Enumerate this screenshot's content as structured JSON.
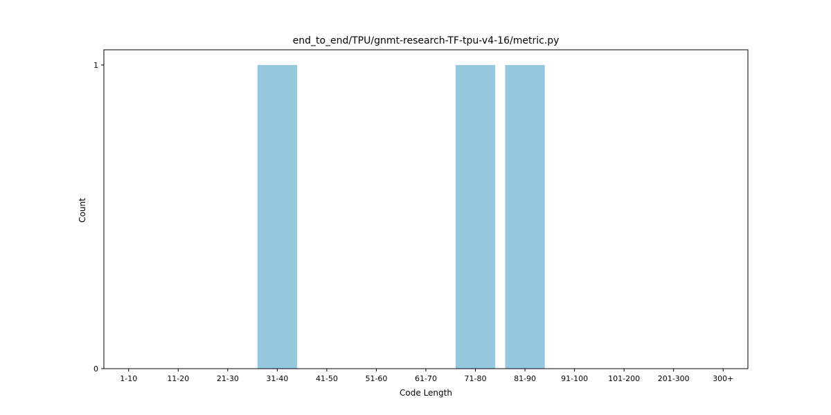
{
  "chart_data": {
    "type": "bar",
    "title": "end_to_end/TPU/gnmt-research-TF-tpu-v4-16/metric.py",
    "xlabel": "Code Length",
    "ylabel": "Count",
    "categories": [
      "1-10",
      "11-20",
      "21-30",
      "31-40",
      "41-50",
      "51-60",
      "61-70",
      "71-80",
      "81-90",
      "91-100",
      "101-200",
      "201-300",
      "300+"
    ],
    "values": [
      0,
      0,
      0,
      1,
      0,
      0,
      0,
      1,
      1,
      0,
      0,
      0,
      0
    ],
    "ylim": [
      0,
      1.05
    ],
    "yticks": [
      0,
      1
    ],
    "bar_color": "#96c8dd",
    "grid": false,
    "legend": "none"
  }
}
